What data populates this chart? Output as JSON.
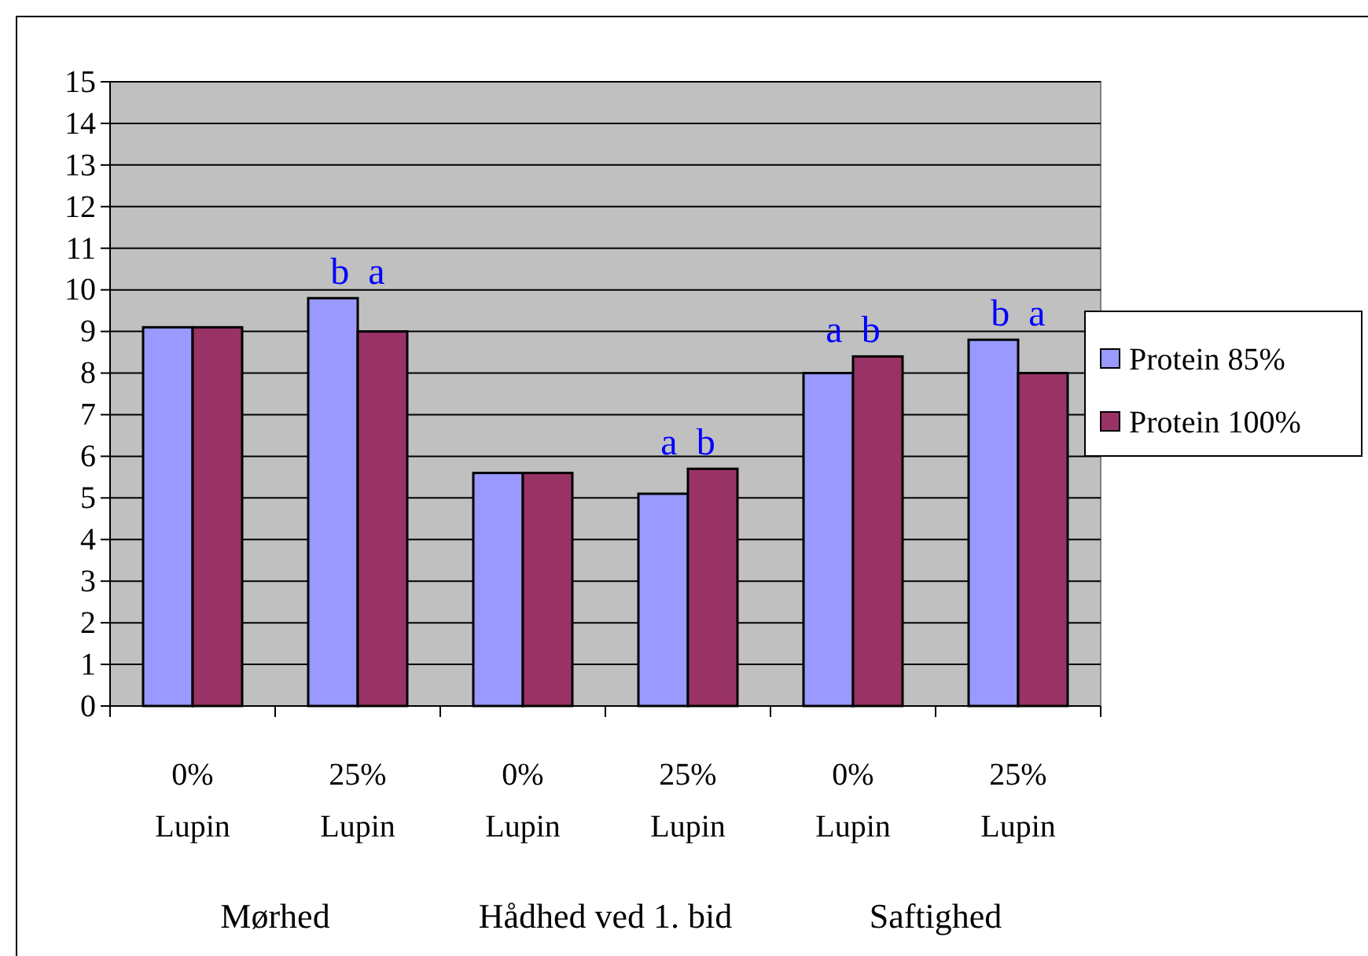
{
  "chart_data": {
    "type": "bar",
    "categories": [
      "0% Lupin",
      "25% Lupin",
      "0% Lupin",
      "25% Lupin",
      "0% Lupin",
      "25% Lupin"
    ],
    "series": [
      {
        "name": "Protein 85%",
        "color": "#9999ff",
        "values": [
          9.1,
          9.8,
          5.6,
          5.1,
          8.0,
          8.8
        ]
      },
      {
        "name": "Protein 100%",
        "color": "#993366",
        "values": [
          9.1,
          9.0,
          5.6,
          5.7,
          8.4,
          8.0
        ]
      }
    ],
    "ylim": [
      0,
      15
    ],
    "yticks": [
      0,
      1,
      2,
      3,
      4,
      5,
      6,
      7,
      8,
      9,
      10,
      11,
      12,
      13,
      14,
      15
    ],
    "grid": "y",
    "legend": "right",
    "annotations": [
      "b  a",
      "a  b",
      "a  b",
      "b  a",
      "Mørhed",
      "Hådhed ved 1. bid",
      "Saftighed"
    ]
  }
}
